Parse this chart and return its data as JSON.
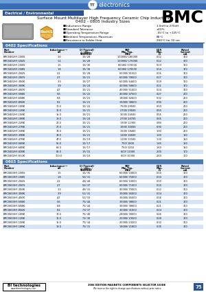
{
  "title_product": "BMC",
  "subtitle1": "Surface Mount Multilayer High Frequency Ceramic Chip Inductors",
  "subtitle2": "0402 - 0805 Industry Sizes",
  "section_label": "Electrical / Environmental",
  "bullet_points": [
    [
      "Inductance Range",
      "1.0nH to 270nH"
    ],
    [
      "Standard Tolerance",
      "±10%"
    ],
    [
      "Operating Temperature Range",
      "-55°C to +125°C"
    ],
    [
      "Ambient Temperature, Maximum",
      "85°C"
    ],
    [
      "Resistance to Solder Heat",
      "260°C for 10 sec"
    ]
  ],
  "table0402_title": "0402 Specifications",
  "table0402_rows": [
    [
      "BMC0402HF-1N0S",
      "1.0",
      "15/ 28",
      "100000/ 180000",
      "0.12",
      "300"
    ],
    [
      "BMC0402HF-1N2S",
      "1.2",
      "15/ 28",
      "100000/ 175000",
      "0.12",
      "300"
    ],
    [
      "BMC0402HF-1N5S",
      "1.5",
      "15/ 30",
      "80000/ 170000",
      "0.13",
      "300"
    ],
    [
      "BMC0402HF-1N8S",
      "1.8",
      "15/ 30",
      "60000/ 170000",
      "0.14",
      "300"
    ],
    [
      "BMC0402HF-2N2S",
      "2.2",
      "15/ 28",
      "60000/ 81500",
      "0.16",
      "300"
    ],
    [
      "BMC0402HF-2N7S",
      "2.7",
      "15/ 21",
      "60000/ 78500",
      "0.17",
      "300"
    ],
    [
      "BMC0402HF-3N3K",
      "3.3",
      "15/ 27",
      "60000/ 64400",
      "0.19",
      "300"
    ],
    [
      "BMC0402HF-3N9K",
      "3.9",
      "15/ 24",
      "40000/ 58600",
      "0.21",
      "300"
    ],
    [
      "BMC0402HF-4N7K",
      "4.7",
      "15/ 21",
      "40000/ 51000",
      "0.24",
      "300"
    ],
    [
      "BMC0402HF-5N6K",
      "5.6",
      "15/ 22",
      "40000/ 47500",
      "0.27",
      "200"
    ],
    [
      "BMC0402HF-6N8K",
      "6.8",
      "15/ 21",
      "18000/ 42600",
      "0.32",
      "200"
    ],
    [
      "BMC0402HF-8N2K",
      "8.2",
      "15/ 21",
      "15000/ 38600",
      "0.90",
      "200"
    ],
    [
      "BMC0402HF-10NK",
      "10.0",
      "15/ 22",
      "7500/ 29500",
      "0.50",
      "200"
    ],
    [
      "BMC0402HF-12NK",
      "12.0",
      "15/ 21",
      "2700/ 29500",
      "0.55",
      "200"
    ],
    [
      "BMC0402HF-15NK",
      "15.0",
      "15/ 21",
      "3000/ 24500",
      "0.55",
      "200"
    ],
    [
      "BMC0402HF-18NK",
      "18.0",
      "15/ 24",
      "2700/ 24700",
      "0.65",
      "200"
    ],
    [
      "BMC0402HF-22NK",
      "22.0",
      "15/ 21",
      "1900/ 12300",
      "0.80",
      "200"
    ],
    [
      "BMC0402HF-27NK",
      "27.0",
      "15/ 21",
      "1600/ 30000",
      "0.90",
      "200"
    ],
    [
      "BMC0402HF-33NK",
      "33.0",
      "15/ 21",
      "1500/ 18400",
      "1.00",
      "200"
    ],
    [
      "BMC0402HF-39NK",
      "39.0",
      "15/ 21",
      "1200/ 16600",
      "1.20",
      "150"
    ],
    [
      "BMC0402HF-47NK",
      "47.0",
      "15/ 19",
      "1100/ 11500",
      "1.30",
      "150"
    ],
    [
      "BMC0402HF-56NK",
      "56.0",
      "15/ 17",
      "750/ 1800",
      "1.45",
      "150"
    ],
    [
      "BMC0402HF-68NK",
      "68.0",
      "15/ 17",
      "750/ 1250",
      "1.60",
      "150"
    ],
    [
      "BMC0402HF-82NK",
      "82.0",
      "15/ 15",
      "600/ 11000",
      "2.00",
      "100"
    ],
    [
      "BMC0402HF-R10K",
      "100.0",
      "15/ 10",
      "600/ 10000",
      "2.60",
      "100"
    ]
  ],
  "table0603_title": "0603 Specifications",
  "table0603_rows": [
    [
      "BMC0603HF-1N5S",
      "1.5",
      "15/ 35",
      "60000/ 10000",
      "0.10",
      "300"
    ],
    [
      "BMC0603HF-1N8S",
      "1.8",
      "50/ 31",
      "60000/ 75000",
      "0.10",
      "300"
    ],
    [
      "BMC0603HF-2N2S",
      "2.2",
      "44/ 44",
      "60000/ 10000",
      "0.10",
      "300"
    ],
    [
      "BMC0603HF-2N7S",
      "2.7",
      "52/ 37",
      "60000/ 71000",
      "0.10",
      "300"
    ],
    [
      "BMC0603HF-3N3K",
      "3.3",
      "46/ 31",
      "40000/ 70000",
      "0.12",
      "300"
    ],
    [
      "BMC0603HF-3N9K",
      "3.9",
      "51/ 31",
      "35000/ 45000",
      "0.14",
      "300"
    ],
    [
      "BMC0603HF-4N7K",
      "4.7",
      "51/ 33",
      "35000/ 45000",
      "0.16",
      "300"
    ],
    [
      "BMC0603HF-5N6K",
      "5.6",
      "75/ 44",
      "35000/ 38600",
      "0.21",
      "300"
    ],
    [
      "BMC0603HF-6N8K",
      "6.8",
      "75/ 44",
      "35000/ 38600",
      "0.21",
      "300"
    ],
    [
      "BMC0603HF-8N2K",
      "8.2",
      "73/ 37",
      "30000/ 31000",
      "0.24",
      "300"
    ],
    [
      "BMC0603HF-10NK",
      "10.0",
      "75/ 40",
      "28000/ 30000",
      "0.26",
      "300"
    ],
    [
      "BMC0603HF-12NK",
      "12.0",
      "72/ 30",
      "20000/ 23500",
      "0.28",
      "300"
    ],
    [
      "BMC0603HF-15NK",
      "15.0",
      "75/ 34",
      "20000/ 23200",
      "0.32",
      "300"
    ],
    [
      "BMC0603HF-18NK",
      "18.0",
      "75/ 31",
      "18000/ 21800",
      "0.35",
      "300"
    ]
  ],
  "col_headers": [
    "Part\nNumber",
    "Inductance(1,2)\nnH",
    "Q (Typical)\n@ (MHz / 900MHz)",
    "SRF\nMin./Typ.\nMHz",
    "DCR\nMax.\nΩ",
    "Rated\nCurrent\nmA"
  ],
  "footer_text": "2006 EDITION MAGNETIC COMPONENTS SELECTOR GUIDE",
  "footer_sub": "We reserve the right to change specifications without prior notice",
  "page_num": "75",
  "bg_color": "#ffffff",
  "table_header_bg": "#4a7ab5",
  "alt_row_color": "#d6e4f7",
  "blue_bar_color": "#2a5298",
  "header_blue": "#3a6db5",
  "header_light_blue": "#6a9fd8"
}
